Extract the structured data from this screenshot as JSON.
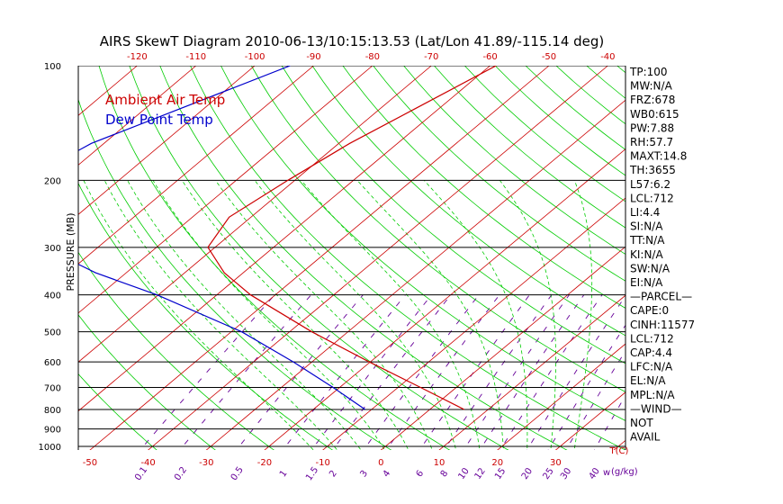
{
  "chart_data": {
    "type": "line",
    "title": "AIRS SkewT Diagram 2010-06-13/10:15:13.53 (Lat/Lon 41.89/-115.14 deg)",
    "ylabel": "PRESSURE (MB)",
    "pressure_ticks": [
      100,
      200,
      300,
      400,
      500,
      600,
      700,
      800,
      900,
      1000
    ],
    "pressure_tick_labels": [
      "100",
      "200",
      "300",
      "400",
      "500",
      "600",
      "700",
      "800",
      "900",
      "1000"
    ],
    "top_temp_ticks": [
      -120,
      -110,
      -100,
      -90,
      -80,
      -70,
      -60,
      -50,
      -40
    ],
    "top_temp_tick_labels": [
      "-120",
      "-110",
      "-100",
      "-90",
      "-80",
      "-70",
      "-60",
      "-50",
      "-40"
    ],
    "bottom_temp_ticks": [
      -50,
      -40,
      -30,
      -20,
      -10,
      0,
      10,
      20,
      30
    ],
    "bottom_temp_tick_labels": [
      "-50",
      "-40",
      "-30",
      "-20",
      "-10",
      "0",
      "10",
      "20",
      "30"
    ],
    "bottom_temp_unit": "T(C)",
    "mixing_ratio_labels": [
      "0.1",
      "0.2",
      "0.5",
      "1",
      "1.5",
      "2",
      "3",
      "4",
      "6",
      "8",
      "10",
      "12",
      "15",
      "20",
      "25",
      "30",
      "40"
    ],
    "mixing_ratio_unit": "(g/kg)",
    "mixing_ratio_unit_prefix": "w",
    "temp_range_bottom": [
      -52,
      42
    ],
    "temp_range_top": [
      -130,
      -37
    ],
    "legend": [
      {
        "label": "Ambient Air Temp",
        "color": "#cc0000"
      },
      {
        "label": "Dew Point Temp",
        "color": "#0000cc"
      }
    ],
    "series": [
      {
        "name": "Ambient Air Temp",
        "color": "#cc0000",
        "points": [
          {
            "p": 100,
            "t": -59
          },
          {
            "p": 130,
            "t": -64
          },
          {
            "p": 160,
            "t": -68
          },
          {
            "p": 200,
            "t": -71
          },
          {
            "p": 250,
            "t": -73.5
          },
          {
            "p": 300,
            "t": -71
          },
          {
            "p": 350,
            "t": -63
          },
          {
            "p": 400,
            "t": -54
          },
          {
            "p": 500,
            "t": -36
          },
          {
            "p": 600,
            "t": -20
          },
          {
            "p": 700,
            "t": -6
          },
          {
            "p": 800,
            "t": 6
          }
        ]
      },
      {
        "name": "Dew Point Temp",
        "color": "#0000cc",
        "points": [
          {
            "p": 100,
            "t": -94
          },
          {
            "p": 160,
            "t": -112
          },
          {
            "p": 200,
            "t": -116
          },
          {
            "p": 250,
            "t": -112
          },
          {
            "p": 300,
            "t": -99
          },
          {
            "p": 350,
            "t": -85
          },
          {
            "p": 400,
            "t": -70
          },
          {
            "p": 500,
            "t": -48
          },
          {
            "p": 600,
            "t": -33
          },
          {
            "p": 700,
            "t": -21
          },
          {
            "p": 800,
            "t": -11
          }
        ]
      }
    ],
    "stats": [
      "TP:100",
      "MW:N/A",
      "FRZ:678",
      "WB0:615",
      "PW:7.88",
      "RH:57.7",
      "MAXT:14.8",
      "TH:3655",
      "L57:6.2",
      "LCL:712",
      "LI:4.4",
      "SI:N/A",
      "TT:N/A",
      "KI:N/A",
      "SW:N/A",
      "EI:N/A",
      "—PARCEL—",
      "CAPE:0",
      "CINH:11577",
      "LCL:712",
      "CAP:4.4",
      "LFC:N/A",
      "EL:N/A",
      "MPL:N/A",
      "—WIND—",
      "NOT",
      "AVAIL"
    ],
    "colors": {
      "isotherm": "#cc0000",
      "dry_adiabat": "#00cc00",
      "moist_adiabat": "#00cc00",
      "mixing_ratio": "#660099",
      "isobar": "#000000"
    },
    "grid": true
  }
}
